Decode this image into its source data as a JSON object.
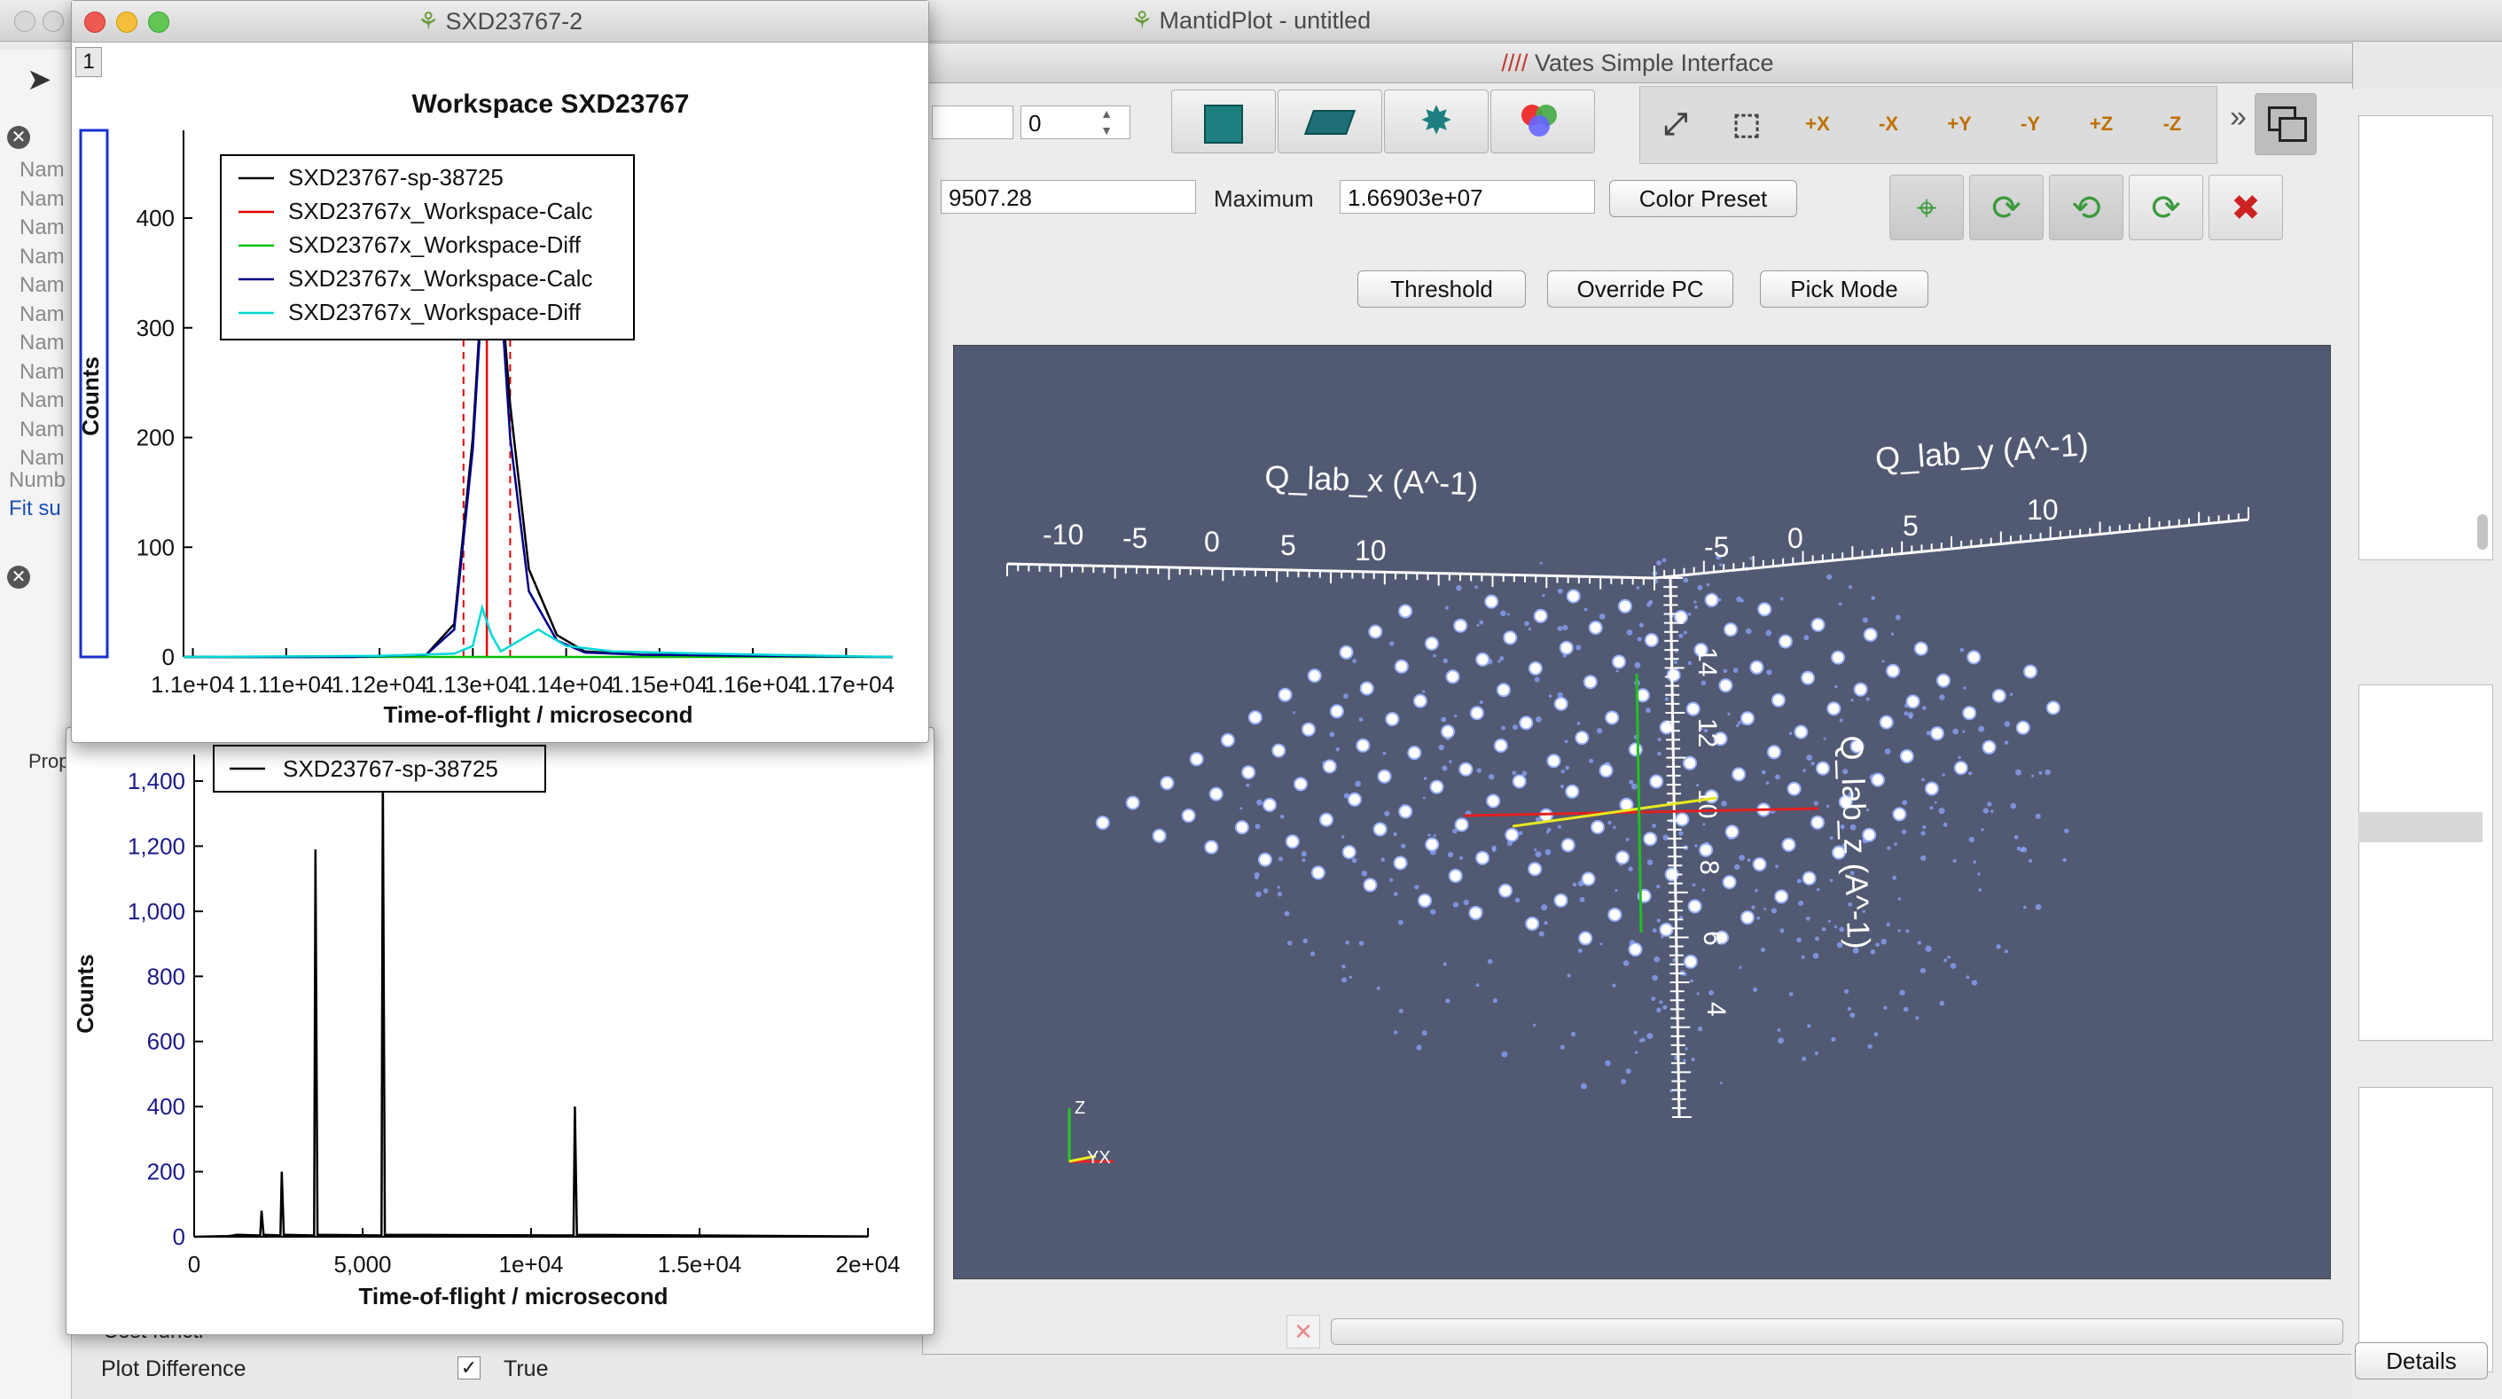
{
  "main_window": {
    "title": "MantidPlot - untitled"
  },
  "vates": {
    "title": "Vates Simple Interface",
    "spin_value": "0",
    "min_value": "9507.28",
    "max_label": "Maximum",
    "max_value": "1.66903e+07",
    "color_preset": "Color Preset",
    "threshold": "Threshold",
    "override_pc": "Override PC",
    "pick_mode": "Pick Mode",
    "more_glyph": "»",
    "axes": {
      "x_title": "Q_lab_x (A^-1)",
      "y_title": "Q_lab_y (A^-1)",
      "z_title": "Q_lab_z (A^-1)",
      "x_ticks": [
        "-10",
        "-5",
        "0",
        "5",
        "10"
      ],
      "y_ticks": [
        "-5",
        "0",
        "5",
        "10"
      ],
      "z_ticks": [
        "14",
        "12",
        "10",
        "8",
        "6",
        "4"
      ]
    },
    "orientation": {
      "z": "Z",
      "xy": "YX"
    },
    "details": "Details"
  },
  "left_panel": {
    "rows": [
      "Nam",
      "Nam",
      "Nam",
      "Nam",
      "Nam",
      "Nam",
      "Nam",
      "Nam",
      "Nam",
      "Nam",
      "Nam"
    ],
    "number_label": "Numb",
    "fit_label": "Fit su",
    "prop_header": "Prop",
    "cost_label": "Cost functi",
    "plot_diff_label": "Plot Difference",
    "plot_diff_value": "True"
  },
  "plot_window": {
    "title": "SXD23767-2",
    "layer_tab": "1",
    "chart_data": {
      "type": "line",
      "title": "Workspace SXD23767",
      "xlabel": "Time-of-flight / microsecond",
      "ylabel": "Counts",
      "xticks": [
        "1.1e+04",
        "1.11e+04",
        "1.12e+04",
        "1.13e+04",
        "1.14e+04",
        "1.15e+04",
        "1.16e+04",
        "1.17e+04"
      ],
      "yticks": [
        "0",
        "100",
        "200",
        "300",
        "400"
      ],
      "ylim": [
        0,
        480
      ],
      "xlim": [
        10990,
        11750
      ],
      "legend": "top-left",
      "series": [
        {
          "name": "SXD23767-sp-38725",
          "color": "#000000",
          "x": [
            10990,
            11170,
            11250,
            11280,
            11300,
            11310,
            11320,
            11330,
            11340,
            11360,
            11390,
            11420,
            11480,
            11600,
            11750
          ],
          "y": [
            0,
            0,
            2,
            30,
            200,
            340,
            370,
            340,
            230,
            80,
            20,
            5,
            2,
            1,
            0
          ]
        },
        {
          "name": "SXD23767x_Workspace-Calc",
          "color": "#e00000",
          "x": [
            11315,
            11315
          ],
          "y": [
            0,
            365
          ]
        },
        {
          "name": "SXD23767x_Workspace-Diff",
          "color": "#00c000",
          "x": [
            10990,
            11750
          ],
          "y": [
            0,
            0
          ]
        },
        {
          "name": "SXD23767x_Workspace-Calc",
          "color": "#00008b",
          "x": [
            10990,
            11170,
            11250,
            11280,
            11300,
            11310,
            11320,
            11330,
            11340,
            11360,
            11390,
            11420,
            11480,
            11600,
            11750
          ],
          "y": [
            0,
            0,
            2,
            25,
            190,
            330,
            360,
            330,
            200,
            60,
            15,
            4,
            2,
            1,
            0
          ]
        },
        {
          "name": "SXD23767x_Workspace-Diff",
          "color": "#00d8d8",
          "x": [
            10990,
            11200,
            11280,
            11300,
            11310,
            11320,
            11330,
            11350,
            11370,
            11400,
            11450,
            11550,
            11750
          ],
          "y": [
            0,
            1,
            3,
            10,
            45,
            20,
            5,
            15,
            25,
            10,
            5,
            3,
            0
          ]
        }
      ],
      "peak_markers_x": [
        11290,
        11340
      ]
    }
  },
  "spectrum_window": {
    "chart_data": {
      "type": "line",
      "xlabel": "Time-of-flight / microsecond",
      "ylabel": "Counts",
      "xticks": [
        "0",
        "5,000",
        "1e+04",
        "1.5e+04",
        "2e+04"
      ],
      "xtick_values": [
        0,
        5000,
        10000,
        15000,
        20000
      ],
      "yticks": [
        "0",
        "200",
        "400",
        "600",
        "800",
        "1,000",
        "1,200",
        "1,400"
      ],
      "ylim": [
        0,
        1400
      ],
      "xlim": [
        0,
        20000
      ],
      "legend": "top-left",
      "series": [
        {
          "name": "SXD23767-sp-38725",
          "color": "#000000",
          "peaks": [
            [
              1200,
              5
            ],
            [
              2000,
              80
            ],
            [
              2600,
              200
            ],
            [
              3600,
              1190
            ],
            [
              5600,
              1420
            ],
            [
              11300,
              400
            ]
          ]
        }
      ]
    }
  }
}
